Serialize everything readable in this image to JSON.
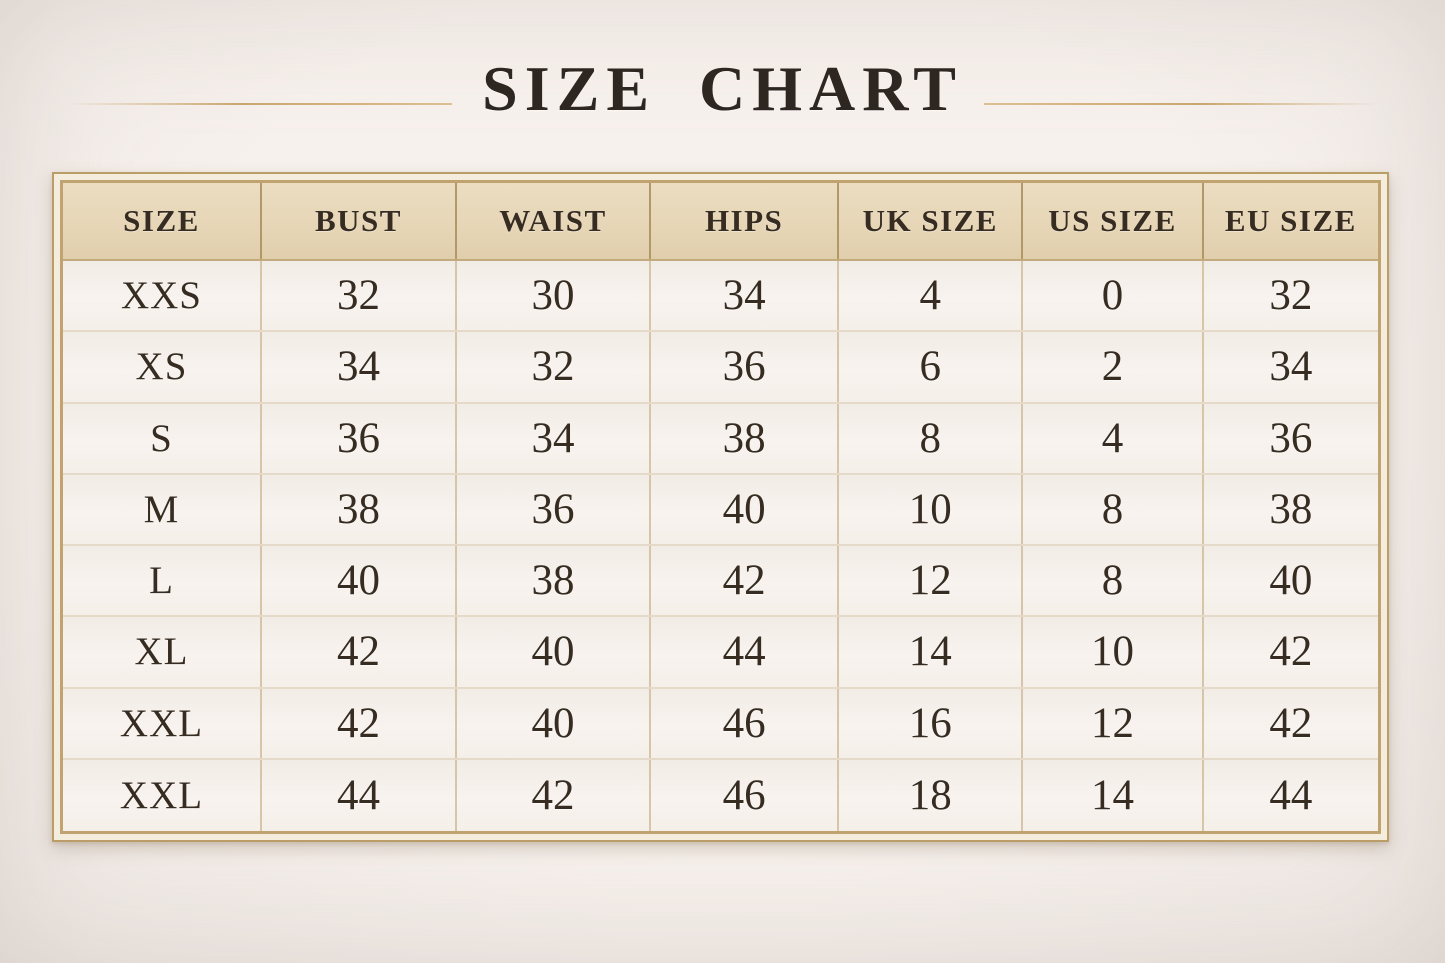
{
  "chart_data": {
    "type": "table",
    "title": "SIZE CHART",
    "columns": [
      "SIZE",
      "BUST",
      "WAIST",
      "HIPS",
      "UK SIZE",
      "US SIZE",
      "EU SIZE"
    ],
    "rows": [
      [
        "XXS",
        "32",
        "30",
        "34",
        "4",
        "0",
        "32"
      ],
      [
        "XS",
        "34",
        "32",
        "36",
        "6",
        "2",
        "34"
      ],
      [
        "S",
        "36",
        "34",
        "38",
        "8",
        "4",
        "36"
      ],
      [
        "M",
        "38",
        "36",
        "40",
        "10",
        "8",
        "38"
      ],
      [
        "L",
        "40",
        "38",
        "42",
        "12",
        "8",
        "40"
      ],
      [
        "XL",
        "42",
        "40",
        "44",
        "14",
        "10",
        "42"
      ],
      [
        "XXL",
        "42",
        "40",
        "46",
        "16",
        "12",
        "42"
      ],
      [
        "XXL",
        "44",
        "42",
        "46",
        "18",
        "14",
        "44"
      ]
    ],
    "layout": {
      "header_position": "top",
      "grid": true
    }
  },
  "colors": {
    "background": "#f2ece8",
    "frame_gold": "#bb9d68",
    "header_background": "#e5d4b4",
    "cell_background": "#f6f1ec",
    "text": "#362c21"
  }
}
